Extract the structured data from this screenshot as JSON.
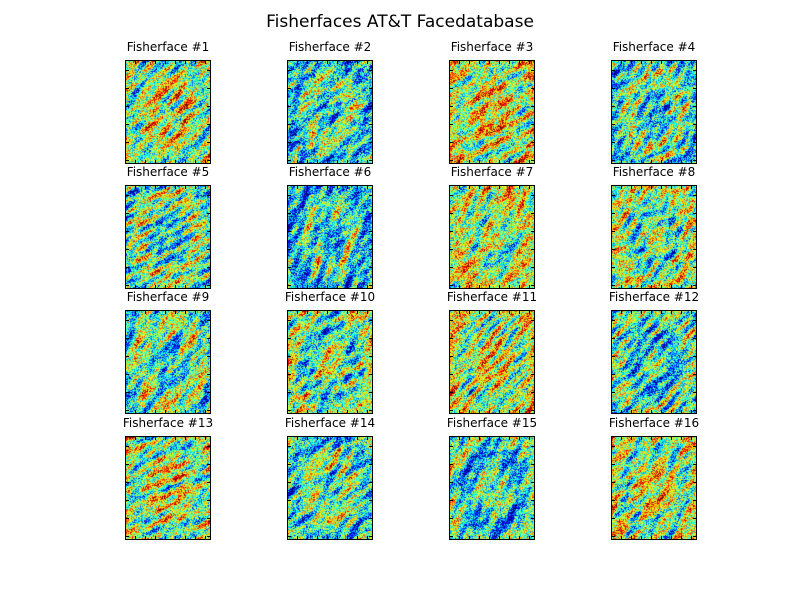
{
  "title": "Fisherfaces AT&T Facedatabase",
  "chart_data": {
    "type": "heatmap",
    "title": "Fisherfaces AT&T Facedatabase",
    "colormap": "jet",
    "grid": false,
    "layout": {
      "rows": 4,
      "cols": 4
    },
    "panels": [
      {
        "title": "Fisherface #1",
        "tone": 0.55,
        "seed": 11
      },
      {
        "title": "Fisherface #2",
        "tone": 0.4,
        "seed": 23
      },
      {
        "title": "Fisherface #3",
        "tone": 0.6,
        "seed": 37
      },
      {
        "title": "Fisherface #4",
        "tone": 0.42,
        "seed": 41
      },
      {
        "title": "Fisherface #5",
        "tone": 0.45,
        "seed": 53
      },
      {
        "title": "Fisherface #6",
        "tone": 0.36,
        "seed": 67
      },
      {
        "title": "Fisherface #7",
        "tone": 0.55,
        "seed": 71
      },
      {
        "title": "Fisherface #8",
        "tone": 0.5,
        "seed": 83
      },
      {
        "title": "Fisherface #9",
        "tone": 0.45,
        "seed": 97
      },
      {
        "title": "Fisherface #10",
        "tone": 0.48,
        "seed": 101
      },
      {
        "title": "Fisherface #11",
        "tone": 0.58,
        "seed": 113
      },
      {
        "title": "Fisherface #12",
        "tone": 0.4,
        "seed": 127
      },
      {
        "title": "Fisherface #13",
        "tone": 0.55,
        "seed": 131
      },
      {
        "title": "Fisherface #14",
        "tone": 0.44,
        "seed": 149
      },
      {
        "title": "Fisherface #15",
        "tone": 0.4,
        "seed": 151
      },
      {
        "title": "Fisherface #16",
        "tone": 0.56,
        "seed": 163
      }
    ]
  }
}
